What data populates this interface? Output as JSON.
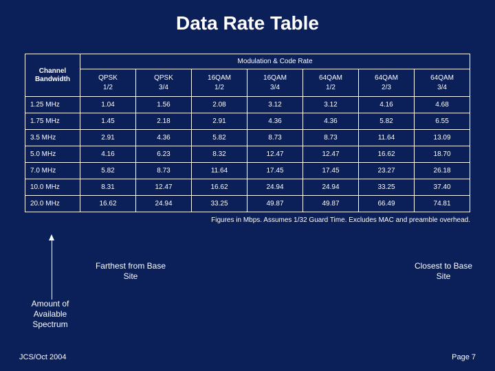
{
  "title": "Data Rate Table",
  "table": {
    "corner_label_l1": "Channel",
    "corner_label_l2": "Bandwidth",
    "modulation_header": "Modulation & Code Rate",
    "columns": [
      {
        "l1": "QPSK",
        "l2": "1/2"
      },
      {
        "l1": "QPSK",
        "l2": "3/4"
      },
      {
        "l1": "16QAM",
        "l2": "1/2"
      },
      {
        "l1": "16QAM",
        "l2": "3/4"
      },
      {
        "l1": "64QAM",
        "l2": "1/2"
      },
      {
        "l1": "64QAM",
        "l2": "2/3"
      },
      {
        "l1": "64QAM",
        "l2": "3/4"
      }
    ],
    "rows": [
      {
        "label": "1.25 MHz",
        "values": [
          "1.04",
          "1.56",
          "2.08",
          "3.12",
          "3.12",
          "4.16",
          "4.68"
        ]
      },
      {
        "label": "1.75 MHz",
        "values": [
          "1.45",
          "2.18",
          "2.91",
          "4.36",
          "4.36",
          "5.82",
          "6.55"
        ]
      },
      {
        "label": "3.5 MHz",
        "values": [
          "2.91",
          "4.36",
          "5.82",
          "8.73",
          "8.73",
          "11.64",
          "13.09"
        ]
      },
      {
        "label": "5.0 MHz",
        "values": [
          "4.16",
          "6.23",
          "8.32",
          "12.47",
          "12.47",
          "16.62",
          "18.70"
        ]
      },
      {
        "label": "7.0 MHz",
        "values": [
          "5.82",
          "8.73",
          "11.64",
          "17.45",
          "17.45",
          "23.27",
          "26.18"
        ]
      },
      {
        "label": "10.0 MHz",
        "values": [
          "8.31",
          "12.47",
          "16.62",
          "24.94",
          "24.94",
          "33.25",
          "37.40"
        ]
      },
      {
        "label": "20.0 MHz",
        "values": [
          "16.62",
          "24.94",
          "33.25",
          "49.87",
          "49.87",
          "66.49",
          "74.81"
        ]
      }
    ]
  },
  "footnote": "Figures in Mbps. Assumes 1/32 Guard Time. Excludes MAC and preamble overhead.",
  "annotations": {
    "farthest": "Farthest from Base Site",
    "closest": "Closest to Base Site",
    "spectrum": "Amount of Available Spectrum"
  },
  "footer": {
    "left": "JCS/Oct 2004",
    "right": "Page 7"
  },
  "colors": {
    "background": "#0b1f58",
    "text": "#ffffff",
    "border": "#ffffff"
  }
}
